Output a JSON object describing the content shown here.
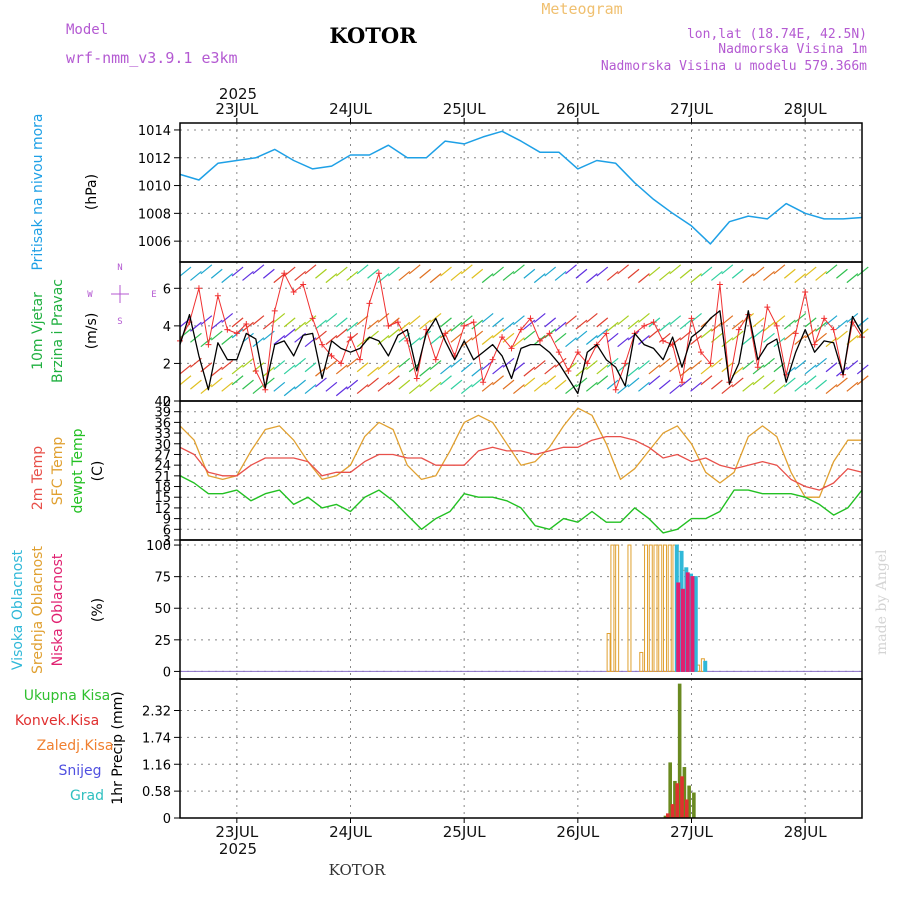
{
  "header": {
    "model_label": "Model",
    "model_name": "wrf-nmm_v3.9.1 e3km",
    "station": "KOTOR",
    "title": "Meteogram",
    "lonlat": "lon,lat (18.74E, 42.5N)",
    "altitude": "Nadmorska Visina 1m",
    "model_altitude": "Nadmorska Visina u modelu 579.366m",
    "footer_station": "KOTOR",
    "watermark": "made by Angel"
  },
  "colors": {
    "pressure": "#1ea0e6",
    "wind_speed": "#000000",
    "gust": "#f03030",
    "t2m": "#e8504a",
    "sfc_temp": "#e0a030",
    "dewpoint": "#22c022",
    "high_cloud": "#30b8d8",
    "mid_cloud": "#e0a030",
    "low_cloud": "#e02070",
    "total_precip": "#6a8a20",
    "conv_precip": "#e03030",
    "header_purple": "#b45ad2",
    "title_orange": "#f0c070"
  },
  "x_axis": {
    "year_top": "2025",
    "year_bottom": "2025",
    "days": [
      "23JUL",
      "24JUL",
      "25JUL",
      "26JUL",
      "27JUL",
      "28JUL"
    ]
  },
  "chart_data": [
    {
      "type": "line",
      "panel": "pressure",
      "ylabel_lines": [
        "Pritisak na nivou mora"
      ],
      "unit": "(hPa)",
      "ylim": [
        1004.5,
        1014.5
      ],
      "yticks": [
        "1006",
        "1008",
        "1010",
        "1012",
        "1014"
      ],
      "grid": true,
      "x_hours": [
        0,
        4,
        8,
        12,
        16,
        20,
        24,
        28,
        32,
        36,
        40,
        44,
        48,
        52,
        56,
        60,
        64,
        68,
        72,
        76,
        80,
        84,
        88,
        92,
        96,
        100,
        104,
        108,
        112,
        116,
        120,
        124,
        128,
        132,
        136,
        140,
        144
      ],
      "series": [
        {
          "values": [
            1010.8,
            1010.4,
            1011.6,
            1011.8,
            1012.0,
            1012.6,
            1011.8,
            1011.2,
            1011.4,
            1012.2,
            1012.2,
            1012.9,
            1012.0,
            1012.0,
            1013.2,
            1013.0,
            1013.5,
            1013.9,
            1013.2,
            1012.4,
            1012.4,
            1011.2,
            1011.8,
            1011.6,
            1010.2,
            1009.0,
            1008.0,
            1007.1,
            1005.8,
            1007.4,
            1007.8,
            1007.6,
            1008.7,
            1008.0,
            1007.6,
            1007.6,
            1007.7
          ]
        }
      ]
    },
    {
      "type": "line",
      "panel": "wind",
      "ylabel_lines": [
        "10m Vjetar",
        "Brzina i Pravac"
      ],
      "unit": "(m/s)",
      "compass": [
        "N",
        "W",
        "E",
        "S"
      ],
      "ylim": [
        0,
        7.4
      ],
      "yticks": [
        "0",
        "2",
        "4",
        "6"
      ],
      "grid": true,
      "x_hours": [
        0,
        2,
        4,
        6,
        8,
        10,
        12,
        14,
        16,
        18,
        20,
        22,
        24,
        26,
        28,
        30,
        32,
        34,
        36,
        38,
        40,
        42,
        44,
        46,
        48,
        50,
        52,
        54,
        56,
        58,
        60,
        62,
        64,
        66,
        68,
        70,
        72,
        74,
        76,
        78,
        80,
        82,
        84,
        86,
        88,
        90,
        92,
        94,
        96,
        98,
        100,
        102,
        104,
        106,
        108,
        110,
        112,
        114,
        116,
        118,
        120,
        122,
        124,
        126,
        128,
        130,
        132,
        134,
        136,
        138,
        140,
        142,
        144
      ],
      "series": [
        {
          "name": "",
          "values": [
            3.0,
            4.6,
            2.4,
            0.6,
            3.1,
            2.2,
            2.2,
            3.6,
            3.3,
            0.7,
            3.0,
            3.2,
            2.4,
            3.5,
            3.6,
            1.2,
            3.2,
            2.8,
            2.6,
            2.8,
            3.4,
            3.2,
            2.4,
            3.5,
            3.8,
            1.6,
            3.6,
            4.4,
            3.2,
            2.2,
            3.2,
            2.2,
            2.6,
            3.0,
            2.4,
            1.2,
            2.8,
            3.0,
            3.0,
            2.6,
            2.0,
            1.2,
            0.4,
            2.6,
            3.0,
            2.2,
            1.8,
            0.8,
            3.6,
            3.0,
            2.8,
            2.2,
            3.4,
            1.8,
            3.4,
            3.8,
            4.4,
            4.8,
            0.9,
            2.0,
            4.8,
            2.2,
            3.0,
            3.3,
            1.0,
            2.6,
            3.8,
            2.6,
            3.2,
            3.1,
            1.4,
            4.5,
            3.6
          ]
        },
        {
          "name": "",
          "values": [
            3.2,
            4.2,
            6.0,
            3.0,
            5.6,
            3.8,
            3.6,
            4.1,
            1.6,
            0.6,
            4.8,
            6.8,
            5.8,
            6.2,
            4.4,
            3.0,
            2.4,
            2.0,
            3.4,
            2.2,
            5.2,
            6.8,
            4.0,
            4.2,
            3.2,
            1.2,
            3.8,
            2.2,
            3.6,
            2.4,
            4.0,
            4.2,
            1.0,
            2.2,
            3.4,
            2.8,
            3.8,
            4.4,
            3.2,
            3.6,
            2.6,
            1.6,
            2.6,
            2.0,
            3.0,
            3.6,
            0.6,
            2.0,
            3.6,
            4.0,
            4.2,
            3.2,
            3.0,
            1.0,
            4.4,
            2.6,
            2.0,
            6.2,
            1.0,
            3.8,
            4.6,
            1.8,
            5.0,
            4.0,
            1.4,
            3.6,
            5.8,
            3.0,
            4.4,
            3.8,
            1.4,
            4.2,
            3.4
          ]
        }
      ]
    },
    {
      "type": "line",
      "panel": "temperature",
      "ylabel_lines": [
        "2m Temp",
        "SFC Temp",
        "dewpt Temp"
      ],
      "unit": "(C)",
      "ylim": [
        3,
        42
      ],
      "yticks": [
        "3",
        "6",
        "9",
        "12",
        "15",
        "18",
        "21",
        "24",
        "27",
        "30",
        "33",
        "36",
        "39",
        "42"
      ],
      "grid": true,
      "x_hours": [
        0,
        3,
        6,
        9,
        12,
        15,
        18,
        21,
        24,
        27,
        30,
        33,
        36,
        39,
        42,
        45,
        48,
        51,
        54,
        57,
        60,
        63,
        66,
        69,
        72,
        75,
        78,
        81,
        84,
        87,
        90,
        93,
        96,
        99,
        102,
        105,
        108,
        111,
        114,
        117,
        120,
        123,
        126,
        129,
        132,
        135,
        138,
        141,
        144
      ],
      "series": [
        {
          "name": "2m Temp",
          "values": [
            29,
            27,
            22,
            21,
            21,
            24,
            26,
            26,
            26,
            25,
            21,
            22,
            22,
            25,
            27,
            27,
            26,
            26,
            24,
            24,
            24,
            28,
            29,
            28,
            28,
            27,
            28,
            29,
            29,
            31,
            32,
            32,
            31,
            29,
            26,
            27,
            25,
            26,
            24,
            23,
            24,
            25,
            24,
            20,
            18,
            17,
            19,
            23,
            22
          ]
        },
        {
          "name": "SFC Temp",
          "values": [
            35,
            31,
            21,
            20,
            21,
            28,
            34,
            35,
            31,
            25,
            20,
            21,
            24,
            32,
            36,
            34,
            24,
            20,
            21,
            28,
            36,
            38,
            36,
            30,
            24,
            25,
            29,
            35,
            40,
            38,
            30,
            20,
            23,
            28,
            33,
            35,
            30,
            22,
            19,
            22,
            32,
            35,
            32,
            22,
            15,
            15,
            25,
            31,
            31
          ]
        },
        {
          "name": "dewpt Temp",
          "values": [
            21,
            19,
            16,
            16,
            17,
            14,
            16,
            17,
            13,
            15,
            12,
            13,
            11,
            15,
            17,
            14,
            10,
            6,
            9,
            11,
            16,
            15,
            15,
            14,
            12,
            7,
            6,
            9,
            8,
            11,
            8,
            8,
            12,
            9,
            5,
            6,
            9,
            9,
            11,
            17,
            17,
            16,
            16,
            16,
            15,
            13,
            10,
            12,
            17
          ]
        }
      ]
    },
    {
      "type": "bar",
      "panel": "cloud",
      "ylabel_lines": [
        "Visoka Oblacnost",
        "Srednja Oblacnost",
        "Niska Oblacnost"
      ],
      "unit": "(%)",
      "ylim": [
        -6,
        104
      ],
      "yticks": [
        "0",
        "25",
        "50",
        "75",
        "100"
      ],
      "grid": true,
      "series": [
        {
          "name": "Srednja Oblacnost",
          "x": [
            90.5,
            91.3,
            92.3,
            94.9,
            97.4,
            98.4,
            99.4,
            100.4,
            101.4,
            102.4,
            103.4,
            104.4,
            105.4,
            106.4,
            107.4,
            108.4,
            109.4,
            110.4
          ],
          "values": [
            30,
            100,
            100,
            100,
            15,
            100,
            100,
            100,
            100,
            100,
            100,
            100,
            95,
            80,
            75,
            75,
            5,
            10
          ]
        },
        {
          "name": "Visoka Oblacnost",
          "x": [
            104.9,
            105.9,
            106.9,
            107.9,
            108.9,
            110.9
          ],
          "values": [
            100,
            95,
            82,
            77,
            75,
            8
          ]
        },
        {
          "name": "Niska Oblacnost",
          "x": [
            105.2,
            106.2,
            107.2,
            108.2
          ],
          "values": [
            70,
            65,
            78,
            75
          ]
        }
      ]
    },
    {
      "type": "bar",
      "panel": "precip",
      "legend": [
        "Ukupna Kisa",
        "Konvek.Kisa",
        "Zaledj.Kisa",
        "Snijeg",
        "Grad"
      ],
      "ylabel_lines": [
        "1hr Precip (mm)"
      ],
      "ylim": [
        0,
        3.0
      ],
      "yticks": [
        "0",
        "0.58",
        "1.16",
        "1.74",
        "2.32"
      ],
      "grid": true,
      "series": [
        {
          "name": "Ukupna Kisa",
          "x": [
            102.5,
            103.5,
            104.5,
            105.5,
            106.5,
            107.5,
            108.5
          ],
          "values": [
            0.05,
            1.2,
            0.8,
            2.9,
            1.1,
            0.7,
            0.55
          ]
        },
        {
          "name": "Konvek.Kisa",
          "x": [
            103.0,
            104.0,
            105.0,
            106.0,
            107.0
          ],
          "values": [
            0.1,
            0.3,
            0.75,
            0.9,
            0.4
          ]
        }
      ]
    }
  ]
}
